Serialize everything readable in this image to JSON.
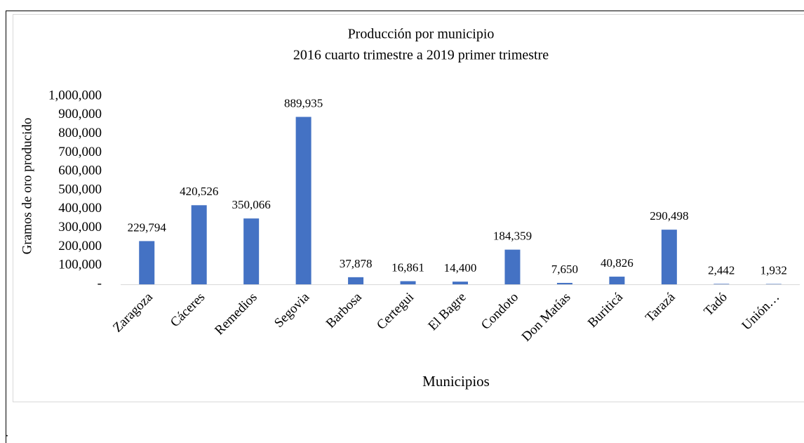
{
  "chart_data": {
    "type": "bar",
    "title": "Producción por municipio",
    "subtitle": "2016 cuarto trimestre a 2019 primer trimestre",
    "y_label": "Gramos de oro producido",
    "x_label": "Municipios",
    "categories": [
      "Zaragoza",
      "Cáceres",
      "Remedios",
      "Segovia",
      "Barbosa",
      "Certegui",
      "El Bagre",
      "Condoto",
      "Don Matías",
      "Buriticá",
      "Tarazá",
      "Tadó",
      "Unión…"
    ],
    "values": [
      229794,
      420526,
      350066,
      889935,
      37878,
      16861,
      14400,
      184359,
      7650,
      40826,
      290498,
      2442,
      1932
    ],
    "value_labels": [
      "229,794",
      "420,526",
      "350,066",
      "889,935",
      "37,878",
      "16,861",
      "14,400",
      "184,359",
      "7,650",
      "40,826",
      "290,498",
      "2,442",
      "1,932"
    ],
    "color": "#4472c4",
    "ylim": [
      0,
      1000000
    ],
    "yticks": [
      {
        "value": 0,
        "label": "-"
      },
      {
        "value": 100000,
        "label": "100,000"
      },
      {
        "value": 200000,
        "label": "200,000"
      },
      {
        "value": 300000,
        "label": "300,000"
      },
      {
        "value": 400000,
        "label": "400,000"
      },
      {
        "value": 500000,
        "label": "500,000"
      },
      {
        "value": 600000,
        "label": "600,000"
      },
      {
        "value": 700000,
        "label": "700,000"
      },
      {
        "value": 800000,
        "label": "800,000"
      },
      {
        "value": 900000,
        "label": "900,000"
      },
      {
        "value": 1000000,
        "label": "1,000,000"
      }
    ],
    "grid": false
  },
  "footnote": "."
}
